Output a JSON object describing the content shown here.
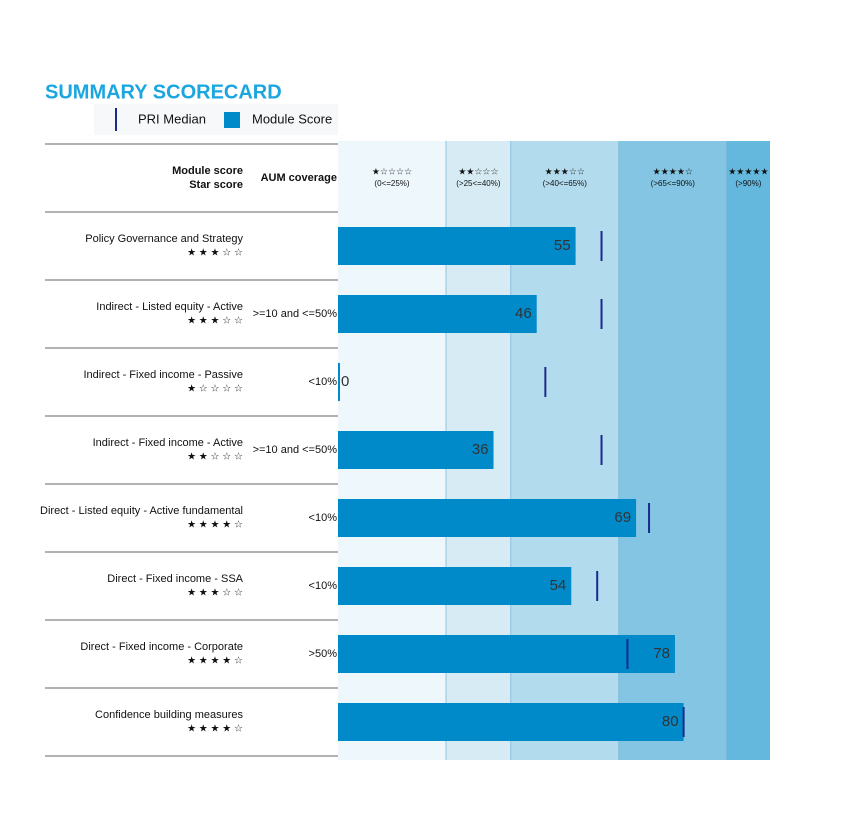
{
  "chart_data": {
    "type": "bar",
    "title": "SUMMARY SCORECARD",
    "headers": {
      "module_score": "Module score",
      "star_score": "Star score",
      "aum": "AUM coverage"
    },
    "categories": [
      "Policy Governance and Strategy",
      "Indirect - Listed equity - Active",
      "Indirect - Fixed income - Passive",
      "Indirect - Fixed income - Active",
      "Direct - Listed equity - Active fundamental",
      "Direct - Fixed income - SSA",
      "Direct - Fixed income - Corporate",
      "Confidence building measures"
    ],
    "stars": [
      "★ ★ ★ ☆ ☆",
      "★ ★ ★ ☆ ☆",
      "★ ☆ ☆ ☆ ☆",
      "★ ★ ☆ ☆ ☆",
      "★ ★ ★ ★ ☆",
      "★ ★ ★ ☆ ☆",
      "★ ★ ★ ★ ☆",
      "★ ★ ★ ★ ☆"
    ],
    "aum": [
      null,
      ">=10 and <=50%",
      "<10%",
      ">=10 and <=50%",
      "<10%",
      "<10%",
      ">50%",
      null
    ],
    "series": [
      {
        "name": "PRI Median",
        "color": "#1a2a8c",
        "values": [
          61,
          61,
          48,
          61,
          72,
          60,
          67,
          80
        ]
      },
      {
        "name": "Module Score",
        "color": "#008ac9",
        "values": [
          55,
          46,
          0,
          36,
          69,
          54,
          78,
          80
        ]
      }
    ],
    "xlim": [
      0,
      100
    ],
    "bands": [
      {
        "stars": "★☆☆☆☆",
        "label": "(0<=25%)",
        "from": 0,
        "to": 25,
        "color": "#eef7fb"
      },
      {
        "stars": "★★☆☆☆",
        "label": "(>25<=40%)",
        "from": 25,
        "to": 40,
        "color": "#d7ebf5"
      },
      {
        "stars": "★★★☆☆",
        "label": "(>40<=65%)",
        "from": 40,
        "to": 65,
        "color": "#b3dbee"
      },
      {
        "stars": "★★★★☆",
        "label": "(>65<=90%)",
        "from": 65,
        "to": 90,
        "color": "#83c5e3"
      },
      {
        "stars": "★★★★★",
        "label": "(>90%)",
        "from": 90,
        "to": 100,
        "color": "#64b8de"
      }
    ]
  }
}
